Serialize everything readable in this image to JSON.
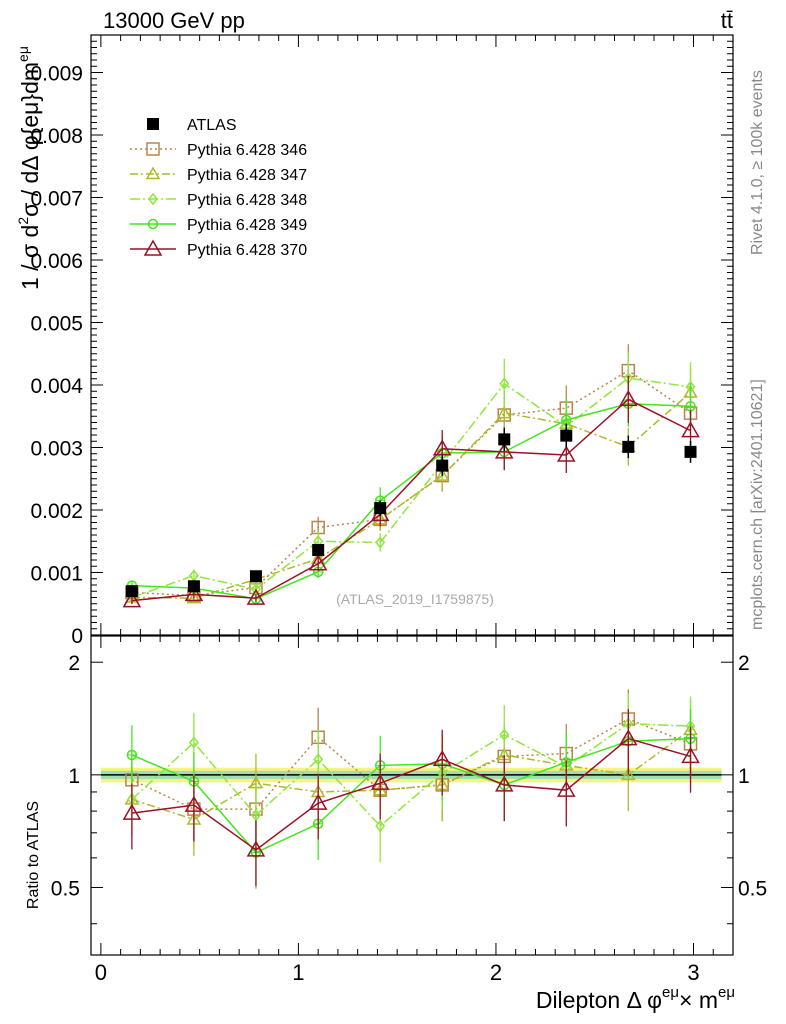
{
  "header": {
    "process": "13000 GeV pp",
    "channel": "tt̄",
    "side_label_top": "Rivet 4.1.0, ≥ 100k events",
    "side_label_bottom": "mcplots.cern.ch [arXiv:2401.10621]"
  },
  "chart_data": {
    "type": "line",
    "title": "",
    "analysis_label": "(ATLAS_2019_I1759875)",
    "ylabel": "1 / σ  d²σ / dΔ φ{eμ}dm^eμ",
    "ylabel_main": "1 / σ  d",
    "ylabel_sup": "2",
    "ylabel_rest": "σ / dΔ φ{eμ}dm",
    "ylabel_sup2": "eμ",
    "xlabel_main": "Dilepton Δ φ",
    "xlabel_sup1": "eμ",
    "xlabel_mid": "× m",
    "xlabel_sup2": "eμ",
    "ratio_ylabel": "Ratio to ATLAS",
    "x_range": [
      -0.05,
      3.2
    ],
    "ylim": [
      0,
      0.0096
    ],
    "ratio_ylim": [
      0.33,
      2.35
    ],
    "x_ticks": [
      "0",
      "1",
      "2",
      "3"
    ],
    "y_ticks": [
      "0",
      "0.001",
      "0.002",
      "0.003",
      "0.004",
      "0.005",
      "0.006",
      "0.007",
      "0.008",
      "0.009"
    ],
    "ratio_ticks": [
      "0.5",
      "1",
      "2"
    ],
    "x": [
      0.157,
      0.471,
      0.785,
      1.1,
      1.414,
      1.728,
      2.042,
      2.356,
      2.67,
      2.985
    ],
    "data": {
      "name": "ATLAS",
      "values": [
        0.0007,
        0.00078,
        0.00094,
        0.00136,
        0.00203,
        0.00271,
        0.00313,
        0.00319,
        0.00301,
        0.00293
      ],
      "color": "#000000",
      "band_inner": "#9fdfb0",
      "band_outer": "#f5f57a"
    },
    "series": [
      {
        "name": "Pythia 6.428 346",
        "color": "#b8864b",
        "dash": "2,3",
        "marker": "square",
        "values": [
          0.00068,
          0.00063,
          0.00076,
          0.00172,
          0.00185,
          0.00255,
          0.00352,
          0.00363,
          0.00423,
          0.00355
        ],
        "ratio": [
          0.97,
          0.81,
          0.81,
          1.26,
          0.91,
          0.94,
          1.12,
          1.14,
          1.41,
          1.21
        ]
      },
      {
        "name": "Pythia 6.428 347",
        "color": "#b0b82a",
        "dash": "8,3,2,3",
        "marker": "triangle",
        "values": [
          0.0006,
          0.00059,
          0.00089,
          0.00122,
          0.00185,
          0.00255,
          0.00355,
          0.00338,
          0.00301,
          0.00388
        ],
        "ratio": [
          0.86,
          0.76,
          0.95,
          0.9,
          0.91,
          0.94,
          1.13,
          1.06,
          1.0,
          1.32
        ]
      },
      {
        "name": "Pythia 6.428 348",
        "color": "#8ee83c",
        "dash": "10,3,2,3",
        "marker": "diamond",
        "values": [
          0.0006,
          0.00095,
          0.00073,
          0.0015,
          0.00148,
          0.00275,
          0.00402,
          0.00334,
          0.00411,
          0.00397
        ],
        "ratio": [
          0.86,
          1.22,
          0.78,
          1.1,
          0.73,
          1.01,
          1.28,
          1.05,
          1.37,
          1.35
        ]
      },
      {
        "name": "Pythia 6.428 349",
        "color": "#44e61e",
        "dash": "",
        "marker": "circle",
        "values": [
          0.00079,
          0.00075,
          0.00058,
          0.00101,
          0.00215,
          0.00291,
          0.00293,
          0.00344,
          0.0037,
          0.00366
        ],
        "ratio": [
          1.13,
          0.96,
          0.62,
          0.74,
          1.06,
          1.07,
          0.94,
          1.08,
          1.23,
          1.25
        ]
      },
      {
        "name": "Pythia 6.428 370",
        "color": "#9b1026",
        "dash": "",
        "marker": "triangle-open",
        "values": [
          0.00055,
          0.00065,
          0.00059,
          0.00114,
          0.00193,
          0.00298,
          0.00293,
          0.00288,
          0.00377,
          0.00327
        ],
        "ratio": [
          0.79,
          0.83,
          0.63,
          0.84,
          0.95,
          1.1,
          0.94,
          0.91,
          1.25,
          1.12
        ]
      }
    ]
  }
}
